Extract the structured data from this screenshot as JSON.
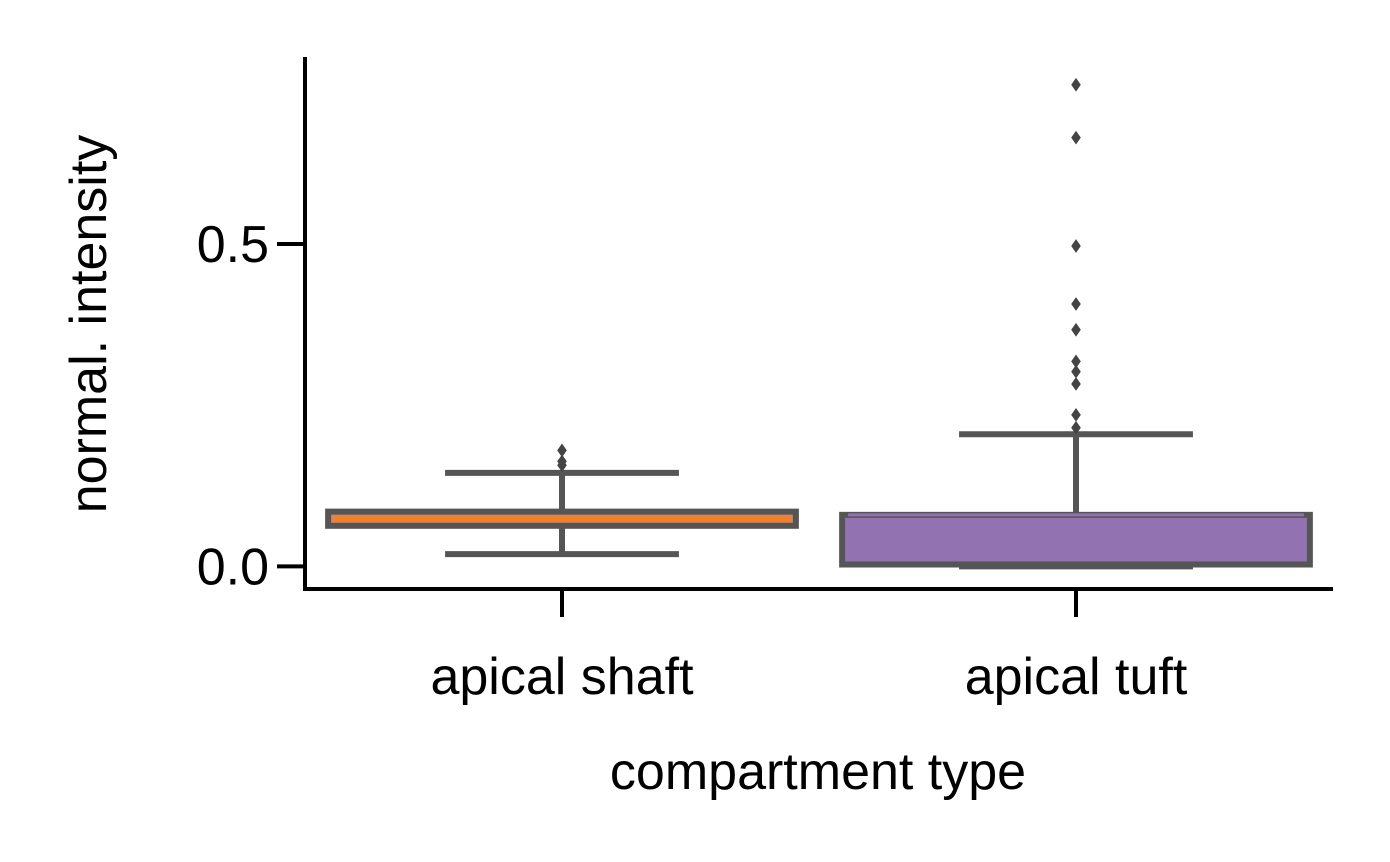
{
  "chart_data": {
    "type": "box",
    "xlabel": "compartment type",
    "ylabel": "normal. intensity",
    "ylim": [
      -0.035,
      0.79
    ],
    "yticks": [
      {
        "value": 0.0,
        "label": "0.0"
      },
      {
        "value": 0.5,
        "label": "0.5"
      }
    ],
    "categories": [
      "apical shaft",
      "apical tuft"
    ],
    "boxes": [
      {
        "category": "apical shaft",
        "color": "#DD8452",
        "median_color": "#FF7F0E",
        "q1": 0.063,
        "median": 0.073,
        "q3": 0.085,
        "whisker_low": 0.019,
        "whisker_high": 0.145,
        "outliers": [
          0.157,
          0.163,
          0.18
        ]
      },
      {
        "category": "apical tuft",
        "color": "#9372B2",
        "median_color": "#9372B2",
        "q1": 0.003,
        "median": 0.08,
        "q3": 0.08,
        "whisker_low": 0.0,
        "whisker_high": 0.205,
        "outliers": [
          0.215,
          0.235,
          0.283,
          0.302,
          0.318,
          0.367,
          0.407,
          0.497,
          0.665,
          0.747
        ]
      }
    ],
    "grid": false,
    "legend": "none"
  }
}
